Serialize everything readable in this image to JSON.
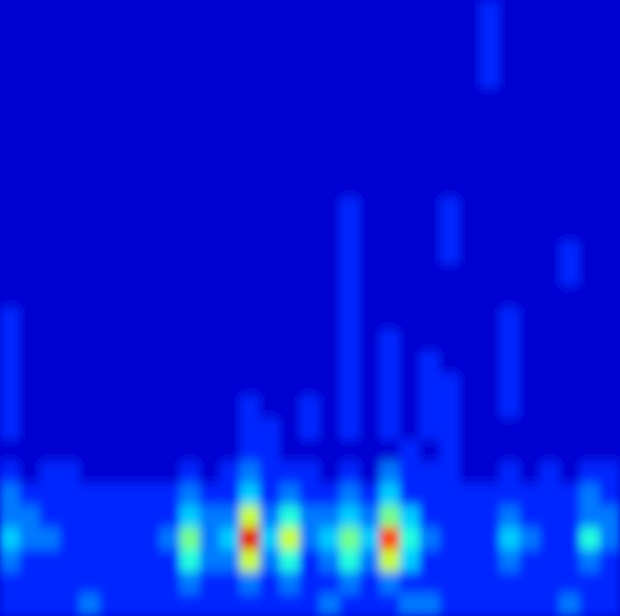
{
  "chart_data": {
    "type": "heatmap",
    "tick_labels": false,
    "color_range": [
      0,
      10
    ],
    "cells": [
      [
        0,
        0,
        0,
        0,
        0,
        0,
        0,
        0,
        0,
        0,
        0,
        0,
        0,
        0,
        0,
        0,
        0,
        0,
        0,
        0,
        0,
        0,
        0,
        0,
        1,
        0,
        0,
        0,
        0,
        0,
        0
      ],
      [
        0,
        0,
        0,
        0,
        0,
        0,
        0,
        0,
        0,
        0,
        0,
        0,
        0,
        0,
        0,
        0,
        0,
        0,
        0,
        0,
        0,
        0,
        0,
        0,
        1,
        0,
        0,
        0,
        0,
        0,
        0
      ],
      [
        0,
        0,
        0,
        0,
        0,
        0,
        0,
        0,
        0,
        0,
        0,
        0,
        0,
        0,
        0,
        0,
        0,
        0,
        0,
        0,
        0,
        0,
        0,
        0,
        1,
        0,
        0,
        0,
        0,
        0,
        0
      ],
      [
        0,
        0,
        0,
        0,
        0,
        0,
        0,
        0,
        0,
        0,
        0,
        0,
        0,
        0,
        0,
        0,
        0,
        0,
        0,
        0,
        0,
        0,
        0,
        0,
        1,
        0,
        0,
        0,
        0,
        0,
        0
      ],
      [
        0,
        0,
        0,
        0,
        0,
        0,
        0,
        0,
        0,
        0,
        0,
        0,
        0,
        0,
        0,
        0,
        0,
        0,
        0,
        0,
        0,
        0,
        0,
        0,
        0,
        0,
        0,
        0,
        0,
        0,
        0
      ],
      [
        0,
        0,
        0,
        0,
        0,
        0,
        0,
        0,
        0,
        0,
        0,
        0,
        0,
        0,
        0,
        0,
        0,
        0,
        0,
        0,
        0,
        0,
        0,
        0,
        0,
        0,
        0,
        0,
        0,
        0,
        0
      ],
      [
        0,
        0,
        0,
        0,
        0,
        0,
        0,
        0,
        0,
        0,
        0,
        0,
        0,
        0,
        0,
        0,
        0,
        0,
        0,
        0,
        0,
        0,
        0,
        0,
        0,
        0,
        0,
        0,
        0,
        0,
        0
      ],
      [
        0,
        0,
        0,
        0,
        0,
        0,
        0,
        0,
        0,
        0,
        0,
        0,
        0,
        0,
        0,
        0,
        0,
        0,
        0,
        0,
        0,
        0,
        0,
        0,
        0,
        0,
        0,
        0,
        0,
        0,
        0
      ],
      [
        0,
        0,
        0,
        0,
        0,
        0,
        0,
        0,
        0,
        0,
        0,
        0,
        0,
        0,
        0,
        0,
        0,
        0,
        0,
        0,
        0,
        0,
        0,
        0,
        0,
        0,
        0,
        0,
        0,
        0,
        0
      ],
      [
        0,
        0,
        0,
        0,
        0,
        0,
        0,
        0,
        0,
        0,
        0,
        0,
        0,
        0,
        0,
        0,
        0,
        1,
        0,
        0,
        0,
        0,
        1,
        0,
        0,
        0,
        0,
        0,
        0,
        0,
        0
      ],
      [
        0,
        0,
        0,
        0,
        0,
        0,
        0,
        0,
        0,
        0,
        0,
        0,
        0,
        0,
        0,
        0,
        0,
        1,
        0,
        0,
        0,
        0,
        1,
        0,
        0,
        0,
        0,
        0,
        0,
        0,
        0
      ],
      [
        0,
        0,
        0,
        0,
        0,
        0,
        0,
        0,
        0,
        0,
        0,
        0,
        0,
        0,
        0,
        0,
        0,
        1,
        0,
        0,
        0,
        0,
        1,
        0,
        0,
        0,
        0,
        0,
        1,
        0,
        0
      ],
      [
        0,
        0,
        0,
        0,
        0,
        0,
        0,
        0,
        0,
        0,
        0,
        0,
        0,
        0,
        0,
        0,
        0,
        1,
        0,
        0,
        0,
        0,
        0,
        0,
        0,
        0,
        0,
        0,
        1,
        0,
        0
      ],
      [
        0,
        0,
        0,
        0,
        0,
        0,
        0,
        0,
        0,
        0,
        0,
        0,
        0,
        0,
        0,
        0,
        0,
        1,
        0,
        0,
        0,
        0,
        0,
        0,
        0,
        0,
        0,
        0,
        0,
        0,
        0
      ],
      [
        1,
        0,
        0,
        0,
        0,
        0,
        0,
        0,
        0,
        0,
        0,
        0,
        0,
        0,
        0,
        0,
        0,
        1,
        0,
        0,
        0,
        0,
        0,
        0,
        0,
        1,
        0,
        0,
        0,
        0,
        0
      ],
      [
        1,
        0,
        0,
        0,
        0,
        0,
        0,
        0,
        0,
        0,
        0,
        0,
        0,
        0,
        0,
        0,
        0,
        1,
        0,
        1,
        0,
        0,
        0,
        0,
        0,
        1,
        0,
        0,
        0,
        0,
        0
      ],
      [
        1,
        0,
        0,
        0,
        0,
        0,
        0,
        0,
        0,
        0,
        0,
        0,
        0,
        0,
        0,
        0,
        0,
        1,
        0,
        1,
        0,
        1,
        0,
        0,
        0,
        1,
        0,
        0,
        0,
        0,
        0
      ],
      [
        1,
        0,
        0,
        0,
        0,
        0,
        0,
        0,
        0,
        0,
        0,
        0,
        0,
        0,
        0,
        0,
        0,
        1,
        0,
        1,
        0,
        1,
        1,
        0,
        0,
        1,
        0,
        0,
        0,
        0,
        0
      ],
      [
        1,
        0,
        0,
        0,
        0,
        0,
        0,
        0,
        0,
        0,
        0,
        0,
        1,
        0,
        0,
        1,
        0,
        1,
        0,
        1,
        0,
        1,
        1,
        0,
        0,
        1,
        0,
        0,
        0,
        0,
        0
      ],
      [
        1,
        0,
        0,
        0,
        0,
        0,
        0,
        0,
        0,
        0,
        0,
        0,
        1,
        1,
        0,
        1,
        0,
        1,
        0,
        1,
        0,
        1,
        1,
        0,
        0,
        0,
        0,
        0,
        0,
        0,
        0
      ],
      [
        0,
        0,
        0,
        0,
        0,
        0,
        0,
        0,
        0,
        0,
        0,
        0,
        1,
        1,
        0,
        0,
        0,
        0,
        0,
        0,
        1,
        0,
        1,
        0,
        0,
        0,
        0,
        0,
        0,
        0,
        0
      ],
      [
        1,
        0,
        1,
        1,
        0,
        0,
        0,
        0,
        0,
        1,
        0,
        1,
        2,
        1,
        1,
        1,
        0,
        1,
        0,
        2,
        1,
        1,
        1,
        0,
        0,
        1,
        0,
        1,
        0,
        1,
        1
      ],
      [
        2,
        1,
        1,
        1,
        1,
        1,
        1,
        1,
        1,
        2,
        1,
        1,
        3,
        1,
        2,
        1,
        1,
        2,
        1,
        3,
        1,
        1,
        1,
        1,
        1,
        1,
        1,
        1,
        1,
        2,
        1
      ],
      [
        2,
        2,
        1,
        1,
        1,
        1,
        1,
        1,
        1,
        3,
        2,
        2,
        6,
        2,
        4,
        2,
        2,
        3,
        2,
        5,
        3,
        1,
        1,
        1,
        1,
        2,
        1,
        1,
        1,
        2,
        2
      ],
      [
        3,
        2,
        2,
        1,
        1,
        1,
        1,
        1,
        2,
        5,
        2,
        3,
        10,
        3,
        6,
        2,
        3,
        5,
        3,
        9,
        4,
        2,
        1,
        1,
        1,
        3,
        2,
        1,
        1,
        4,
        2
      ],
      [
        2,
        1,
        1,
        1,
        1,
        1,
        1,
        1,
        1,
        4,
        2,
        2,
        6,
        2,
        4,
        1,
        2,
        4,
        2,
        6,
        3,
        1,
        1,
        1,
        1,
        2,
        1,
        1,
        1,
        2,
        1
      ],
      [
        1,
        1,
        1,
        1,
        1,
        1,
        1,
        1,
        1,
        2,
        1,
        1,
        2,
        1,
        2,
        1,
        1,
        2,
        1,
        2,
        1,
        1,
        1,
        1,
        1,
        1,
        1,
        1,
        1,
        1,
        1
      ],
      [
        1,
        1,
        1,
        1,
        2,
        1,
        1,
        1,
        1,
        1,
        1,
        1,
        1,
        1,
        1,
        1,
        2,
        1,
        1,
        1,
        2,
        2,
        1,
        1,
        1,
        1,
        1,
        1,
        2,
        1,
        1
      ]
    ]
  }
}
